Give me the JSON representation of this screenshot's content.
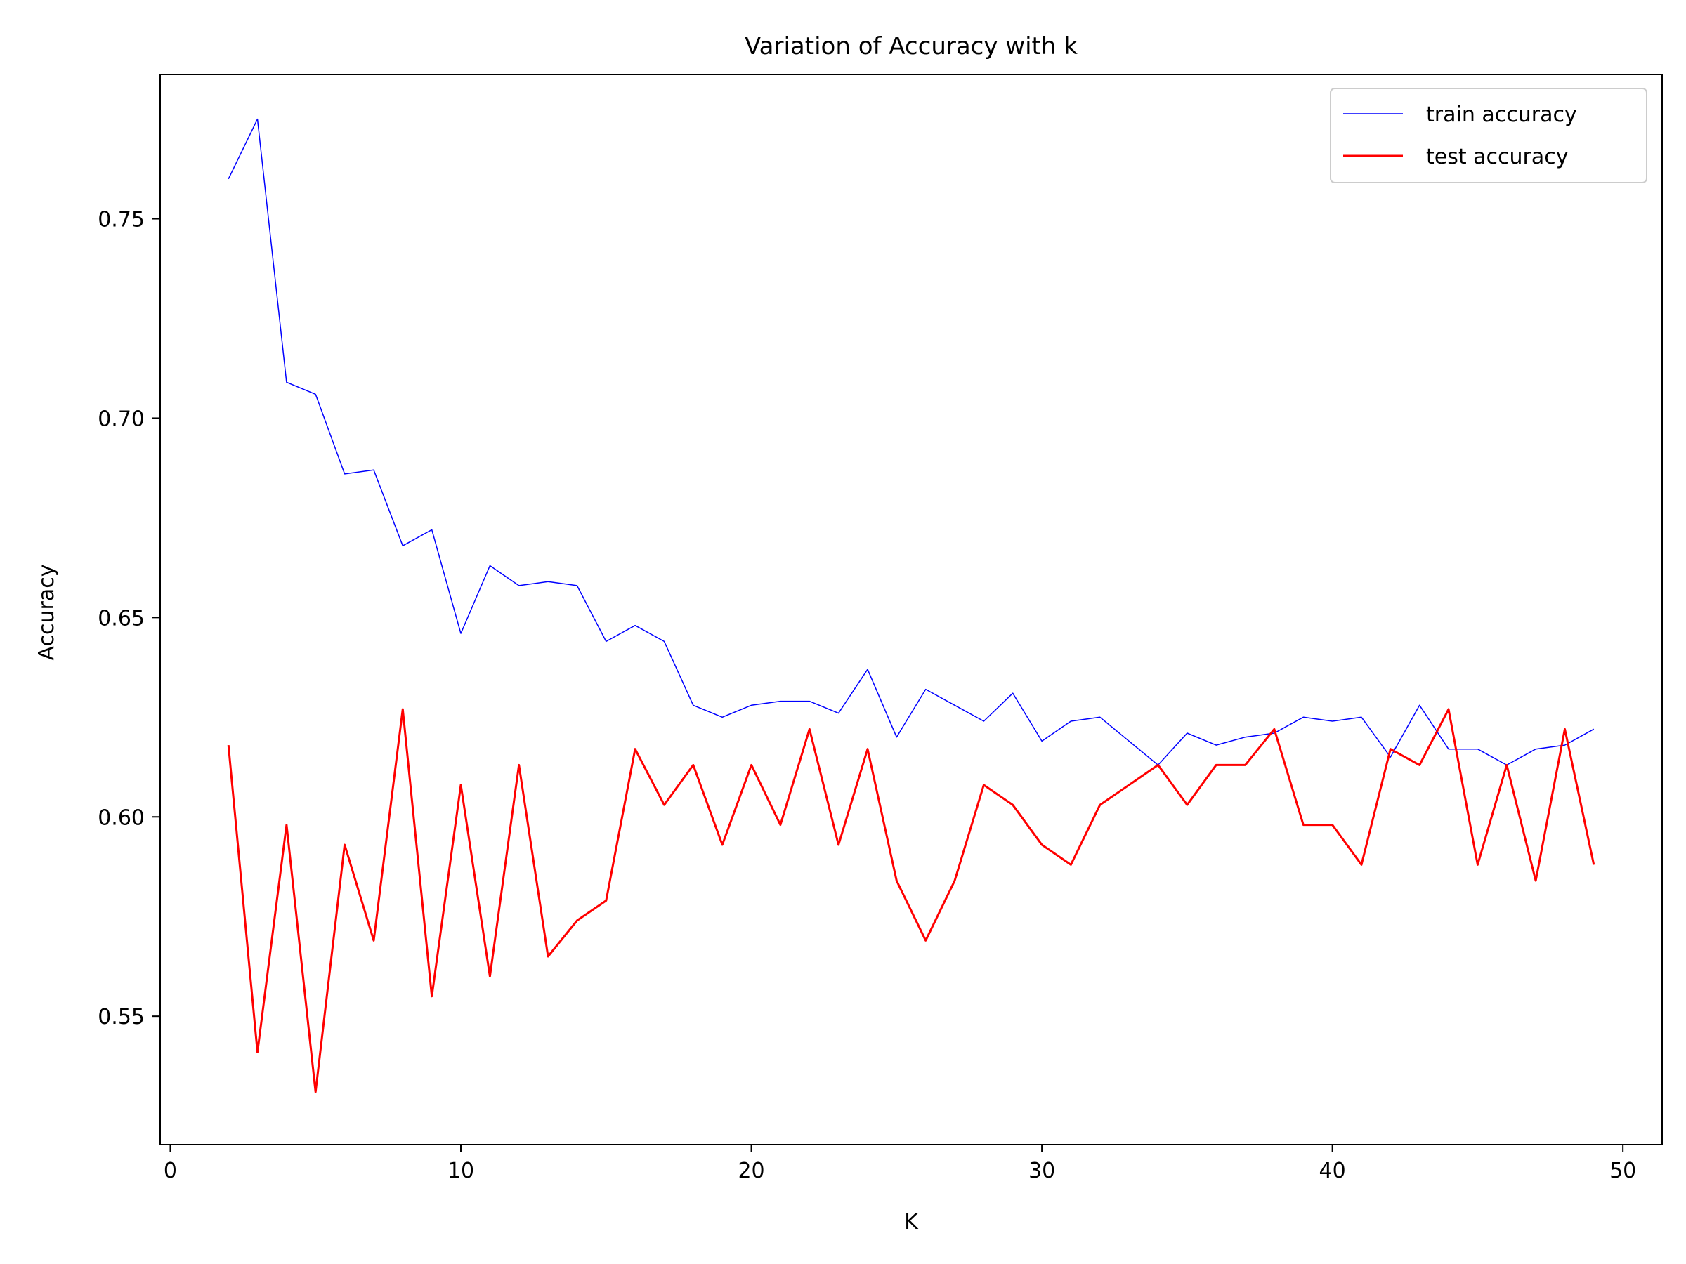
{
  "chart_data": {
    "type": "line",
    "title": "Variation of Accuracy with k",
    "xlabel": "K",
    "ylabel": "Accuracy",
    "xlim": [
      -0.35,
      51.35
    ],
    "ylim": [
      0.5178,
      0.7862
    ],
    "xticks": [
      0,
      10,
      20,
      30,
      40,
      50
    ],
    "xtick_labels": [
      "0",
      "10",
      "20",
      "30",
      "40",
      "50"
    ],
    "yticks": [
      0.55,
      0.6,
      0.65,
      0.7,
      0.75
    ],
    "ytick_labels": [
      "0.55",
      "0.60",
      "0.65",
      "0.70",
      "0.75"
    ],
    "grid": false,
    "legend_position": "top-right",
    "x": [
      2,
      3,
      4,
      5,
      6,
      7,
      8,
      9,
      10,
      11,
      12,
      13,
      14,
      15,
      16,
      17,
      18,
      19,
      20,
      21,
      22,
      23,
      24,
      25,
      26,
      27,
      28,
      29,
      30,
      31,
      32,
      33,
      34,
      35,
      36,
      37,
      38,
      39,
      40,
      41,
      42,
      43,
      44,
      45,
      46,
      47,
      48,
      49
    ],
    "series": [
      {
        "name": "train accuracy",
        "color": "#0000ff",
        "line_width": 1.5,
        "values": [
          0.76,
          0.775,
          0.709,
          0.706,
          0.686,
          0.687,
          0.668,
          0.672,
          0.646,
          0.663,
          0.658,
          0.659,
          0.658,
          0.644,
          0.648,
          0.644,
          0.628,
          0.625,
          0.628,
          0.629,
          0.629,
          0.626,
          0.637,
          0.62,
          0.632,
          0.628,
          0.624,
          0.631,
          0.619,
          0.624,
          0.625,
          0.619,
          0.613,
          0.621,
          0.618,
          0.62,
          0.621,
          0.625,
          0.624,
          0.625,
          0.615,
          0.628,
          0.617,
          0.617,
          0.613,
          0.617,
          0.618,
          0.622
        ]
      },
      {
        "name": "test accuracy",
        "color": "#ff0000",
        "line_width": 3,
        "values": [
          0.618,
          0.541,
          0.598,
          0.531,
          0.593,
          0.569,
          0.627,
          0.555,
          0.608,
          0.56,
          0.613,
          0.565,
          0.574,
          0.579,
          0.617,
          0.603,
          0.613,
          0.593,
          0.613,
          0.598,
          0.622,
          0.593,
          0.617,
          0.584,
          0.569,
          0.584,
          0.608,
          0.603,
          0.593,
          0.588,
          0.603,
          0.608,
          0.613,
          0.603,
          0.613,
          0.613,
          0.622,
          0.598,
          0.598,
          0.588,
          0.617,
          0.613,
          0.627,
          0.588,
          0.613,
          0.584,
          0.622,
          0.588
        ]
      }
    ]
  }
}
